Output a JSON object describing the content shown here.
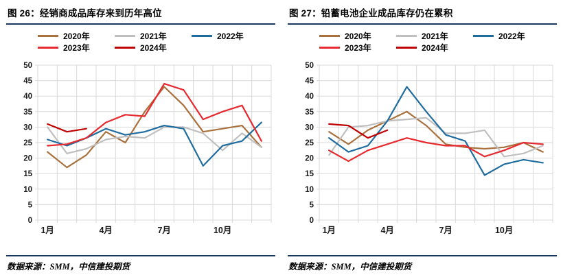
{
  "colors": {
    "rule_navy": "#17375E",
    "grid": "#D9D9D9",
    "tick_text": "#1A1A1A",
    "series_2020": "#A9713E",
    "series_2021": "#BFBFBF",
    "series_2022": "#1F6C9E",
    "series_2023": "#E8282F",
    "series_2024": "#C00000"
  },
  "panels": [
    {
      "source_note": "数据来源：SMM，中信建投期货"
    },
    {
      "source_note": "数据来源：SMM，中信建投期货"
    }
  ],
  "chart_data": [
    {
      "type": "line",
      "title": "图 26：经销商成品库存来到历年高位",
      "x_range": [
        1,
        12
      ],
      "x_ticks": [
        {
          "m": 1,
          "label": "1月"
        },
        {
          "m": 4,
          "label": "4月"
        },
        {
          "m": 7,
          "label": "7月"
        },
        {
          "m": 10,
          "label": "10月"
        }
      ],
      "ylim": [
        0,
        50
      ],
      "y_ticks": [
        0,
        5,
        10,
        15,
        20,
        25,
        30,
        35,
        40,
        45,
        50
      ],
      "grid": true,
      "legend_position": "top",
      "series": [
        {
          "name": "2020年",
          "color": "#A9713E",
          "values": [
            22,
            17,
            21,
            28.5,
            25,
            35,
            43,
            37,
            28.5,
            29.5,
            30.5,
            23.5
          ]
        },
        {
          "name": "2021年",
          "color": "#BFBFBF",
          "values": [
            30,
            21.5,
            23,
            26,
            27,
            26.5,
            30,
            30,
            28,
            22.5,
            28,
            23.5
          ]
        },
        {
          "name": "2022年",
          "color": "#1F6C9E",
          "values": [
            26,
            24,
            26.5,
            29.5,
            27.5,
            28.5,
            30.5,
            29.5,
            17.5,
            24,
            25.5,
            31.5
          ]
        },
        {
          "name": "2023年",
          "color": "#E8282F",
          "values": [
            24,
            24.5,
            26.5,
            31.5,
            34,
            33.5,
            44,
            42,
            32.5,
            35,
            37,
            25.5
          ]
        },
        {
          "name": "2024年",
          "color": "#C00000",
          "values": [
            31,
            28.5,
            29.5
          ]
        }
      ]
    },
    {
      "type": "line",
      "title": "图 27：铅蓄电池企业成品库存仍在累积",
      "x_range": [
        1,
        12
      ],
      "x_ticks": [
        {
          "m": 1,
          "label": "1月"
        },
        {
          "m": 4,
          "label": "4月"
        },
        {
          "m": 7,
          "label": "7月"
        },
        {
          "m": 10,
          "label": "10月"
        }
      ],
      "ylim": [
        0,
        50
      ],
      "y_ticks": [
        0,
        5,
        10,
        15,
        20,
        25,
        30,
        35,
        40,
        45,
        50
      ],
      "grid": true,
      "legend_position": "top",
      "series": [
        {
          "name": "2020年",
          "color": "#A9713E",
          "values": [
            28.5,
            24.5,
            29,
            32,
            35,
            30.5,
            24.5,
            23.5,
            23,
            23.5,
            25,
            22
          ]
        },
        {
          "name": "2021年",
          "color": "#BFBFBF",
          "values": [
            21,
            30,
            30.5,
            32,
            32.5,
            33,
            28,
            28,
            29,
            20.5,
            21.5,
            24
          ]
        },
        {
          "name": "2022年",
          "color": "#1F6C9E",
          "values": [
            26.5,
            22,
            24,
            32,
            43,
            35,
            27.5,
            25.5,
            14.5,
            18,
            19.5,
            18.5
          ]
        },
        {
          "name": "2023年",
          "color": "#E8282F",
          "values": [
            22.5,
            19,
            22.5,
            24.5,
            26.5,
            25,
            24,
            24,
            20.5,
            22.5,
            25,
            24.5
          ]
        },
        {
          "name": "2024年",
          "color": "#C00000",
          "values": [
            31,
            30.5,
            26.5,
            29
          ]
        }
      ]
    }
  ]
}
